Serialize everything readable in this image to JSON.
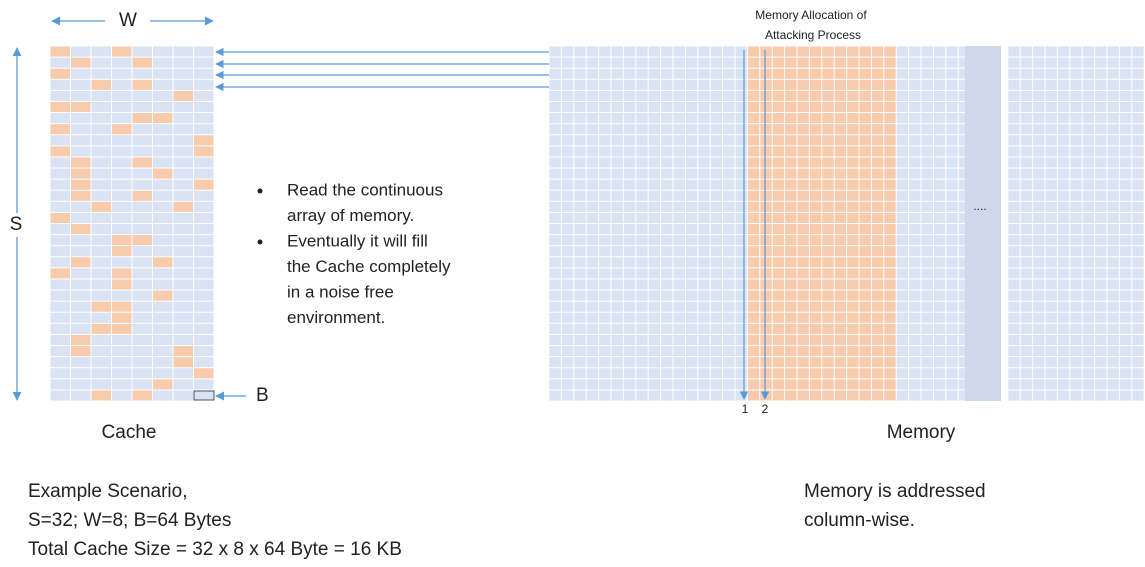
{
  "diagram": {
    "cache": {
      "width_label": "W",
      "sets_label": "S",
      "block_label": "B",
      "caption": "Cache"
    },
    "memory": {
      "header": [
        "Memory Allocation of",
        "Attacking Process"
      ],
      "caption": "Memory",
      "column_markers": [
        "1",
        "2"
      ],
      "ellipsis": "....",
      "note": [
        "Memory is addressed",
        "column-wise."
      ]
    },
    "bullets": [
      [
        "Read the continuous",
        "array of memory."
      ],
      [
        "Eventually it will fill",
        "the Cache completely",
        "in a noise free",
        "environment."
      ]
    ],
    "scenario": [
      "Example Scenario,",
      "S=32; W=8; B=64 Bytes",
      "Total Cache Size = 32 x 8 x 64 Byte = 16 KB"
    ]
  }
}
